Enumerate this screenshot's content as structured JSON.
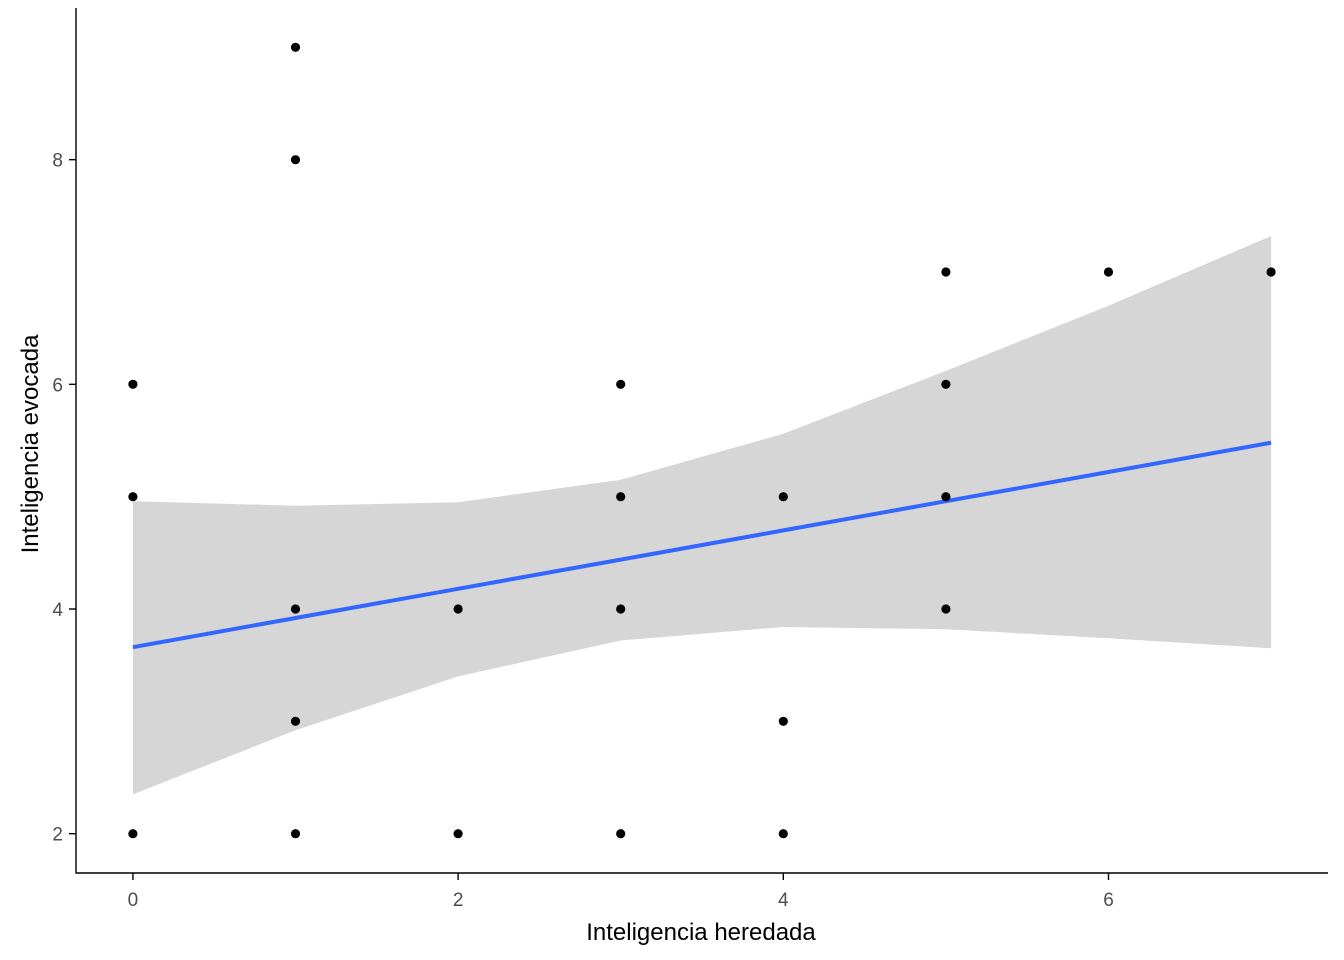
{
  "chart_data": {
    "type": "scatter",
    "xlabel": "Inteligencia heredada",
    "ylabel": "Inteligencia evocada",
    "xlim": [
      -0.35,
      7.35
    ],
    "ylim": [
      1.65,
      9.35
    ],
    "xticks": [
      0,
      2,
      4,
      6
    ],
    "yticks": [
      2,
      4,
      6,
      8
    ],
    "grid": false,
    "points": [
      {
        "x": 0,
        "y": 2
      },
      {
        "x": 0,
        "y": 5
      },
      {
        "x": 0,
        "y": 6
      },
      {
        "x": 1,
        "y": 2
      },
      {
        "x": 1,
        "y": 3
      },
      {
        "x": 1,
        "y": 4
      },
      {
        "x": 1,
        "y": 8
      },
      {
        "x": 1,
        "y": 9
      },
      {
        "x": 2,
        "y": 2
      },
      {
        "x": 2,
        "y": 4
      },
      {
        "x": 3,
        "y": 2
      },
      {
        "x": 3,
        "y": 4
      },
      {
        "x": 3,
        "y": 5
      },
      {
        "x": 3,
        "y": 6
      },
      {
        "x": 4,
        "y": 2
      },
      {
        "x": 4,
        "y": 3
      },
      {
        "x": 4,
        "y": 5
      },
      {
        "x": 5,
        "y": 4
      },
      {
        "x": 5,
        "y": 5
      },
      {
        "x": 5,
        "y": 6
      },
      {
        "x": 5,
        "y": 7
      },
      {
        "x": 6,
        "y": 7
      },
      {
        "x": 7,
        "y": 7
      }
    ],
    "smooth": {
      "method": "lm",
      "x": [
        0,
        1,
        2,
        3,
        4,
        5,
        6,
        7
      ],
      "fit": [
        3.66,
        3.92,
        4.18,
        4.44,
        4.7,
        4.96,
        5.22,
        5.48
      ],
      "upper": [
        4.96,
        4.92,
        4.95,
        5.15,
        5.56,
        6.12,
        6.7,
        7.32
      ],
      "lower": [
        2.35,
        2.92,
        3.4,
        3.72,
        3.84,
        3.82,
        3.74,
        3.65
      ]
    },
    "colors": {
      "points": "#000000",
      "line": "#3366ff",
      "ribbon": "#d6d6d6",
      "axis": "#000000",
      "tick_label": "#4d4d4d"
    }
  }
}
